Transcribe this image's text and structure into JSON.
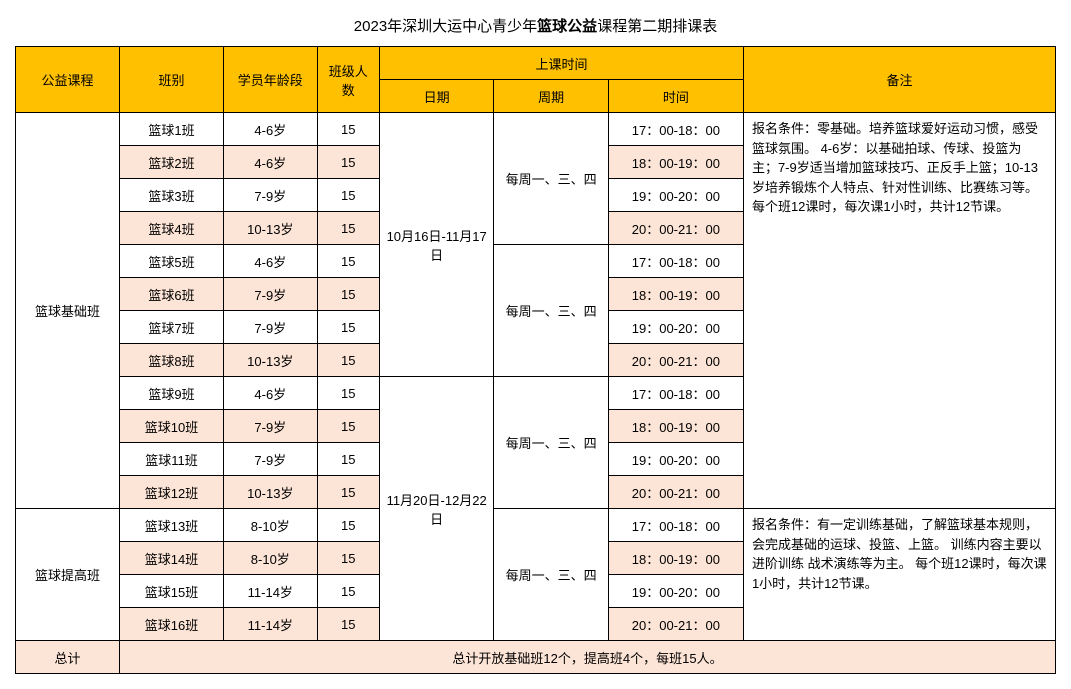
{
  "title_prefix": "2023年深圳大运中心青少年",
  "title_bold": "篮球公益",
  "title_suffix": "课程第二期排课表",
  "headers": {
    "course": "公益课程",
    "class": "班别",
    "age": "学员年龄段",
    "size": "班级人数",
    "time_group": "上课时间",
    "date": "日期",
    "weekday": "周期",
    "time": "时间",
    "note": "备注"
  },
  "course_basic": "篮球基础班",
  "course_adv": "篮球提高班",
  "date1": "10月16日-11月17日",
  "date2": "11月20日-12月22日",
  "weekday_label": "每周一、三、四",
  "rows": {
    "r1": {
      "class": "篮球1班",
      "age": "4-6岁",
      "size": "15",
      "time": "17：00-18：00"
    },
    "r2": {
      "class": "篮球2班",
      "age": "4-6岁",
      "size": "15",
      "time": "18：00-19：00"
    },
    "r3": {
      "class": "篮球3班",
      "age": "7-9岁",
      "size": "15",
      "time": "19：00-20：00"
    },
    "r4": {
      "class": "篮球4班",
      "age": "10-13岁",
      "size": "15",
      "time": "20：00-21：00"
    },
    "r5": {
      "class": "篮球5班",
      "age": "4-6岁",
      "size": "15",
      "time": "17：00-18：00"
    },
    "r6": {
      "class": "篮球6班",
      "age": "7-9岁",
      "size": "15",
      "time": "18：00-19：00"
    },
    "r7": {
      "class": "篮球7班",
      "age": "7-9岁",
      "size": "15",
      "time": "19：00-20：00"
    },
    "r8": {
      "class": "篮球8班",
      "age": "10-13岁",
      "size": "15",
      "time": "20：00-21：00"
    },
    "r9": {
      "class": "篮球9班",
      "age": "4-6岁",
      "size": "15",
      "time": "17：00-18：00"
    },
    "r10": {
      "class": "篮球10班",
      "age": "7-9岁",
      "size": "15",
      "time": "18：00-19：00"
    },
    "r11": {
      "class": "篮球11班",
      "age": "7-9岁",
      "size": "15",
      "time": "19：00-20：00"
    },
    "r12": {
      "class": "篮球12班",
      "age": "10-13岁",
      "size": "15",
      "time": "20：00-21：00"
    },
    "r13": {
      "class": "篮球13班",
      "age": "8-10岁",
      "size": "15",
      "time": "17：00-18：00"
    },
    "r14": {
      "class": "篮球14班",
      "age": "8-10岁",
      "size": "15",
      "time": "18：00-19：00"
    },
    "r15": {
      "class": "篮球15班",
      "age": "11-14岁",
      "size": "15",
      "time": "19：00-20：00"
    },
    "r16": {
      "class": "篮球16班",
      "age": "11-14岁",
      "size": "15",
      "time": "20：00-21：00"
    }
  },
  "note1": "报名条件：零基础。培养篮球爱好运动习惯，感受篮球氛围。\n4-6岁：以基础拍球、传球、投篮为主；7-9岁适当增加篮球技巧、正反手上篮；10-13岁培养锻炼个人特点、针对性训练、比赛练习等。\n每个班12课时，每次课1小时，共计12节课。",
  "note2": "报名条件：有一定训练基础，了解篮球基本规则，会完成基础的运球、投篮、上篮。\n训练内容主要以进阶训练 战术演练等为主。\n每个班12课时，每次课1小时，共计12节课。",
  "total_label": "总计",
  "total_text": "总计开放基础班12个，提高班4个，每班15人。",
  "colors": {
    "header_bg": "#ffc000",
    "alt_bg": "#fce4d6",
    "border": "#000000",
    "text": "#000000",
    "page_bg": "#ffffff"
  }
}
